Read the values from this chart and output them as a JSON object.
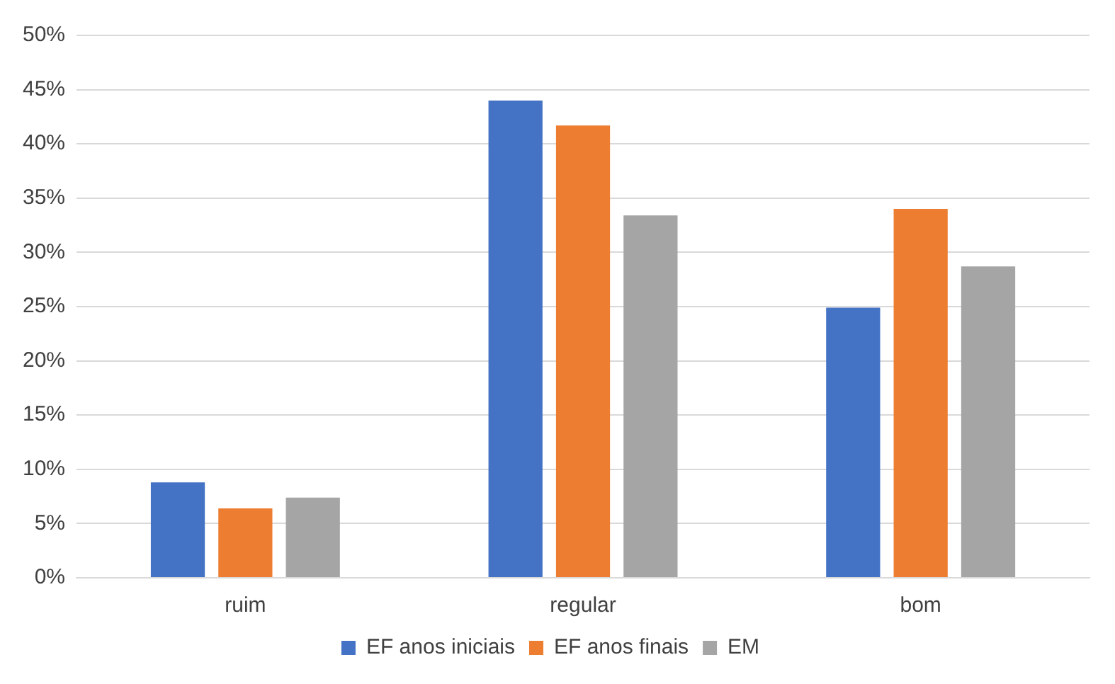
{
  "chart_data": {
    "type": "bar",
    "categories": [
      "ruim",
      "regular",
      "bom"
    ],
    "series": [
      {
        "name": "EF anos iniciais",
        "color": "#4472c4",
        "values": [
          8.8,
          44.0,
          24.9
        ]
      },
      {
        "name": "EF anos finais",
        "color": "#ed7d31",
        "values": [
          6.4,
          41.7,
          34.0
        ]
      },
      {
        "name": "EM",
        "color": "#a5a5a5",
        "values": [
          7.4,
          33.4,
          28.7
        ]
      }
    ],
    "ylim": [
      0,
      50
    ],
    "yticks": [
      {
        "value": 0,
        "label": "0%"
      },
      {
        "value": 5,
        "label": "5%"
      },
      {
        "value": 10,
        "label": "10%"
      },
      {
        "value": 15,
        "label": "15%"
      },
      {
        "value": 20,
        "label": "20%"
      },
      {
        "value": 25,
        "label": "25%"
      },
      {
        "value": 30,
        "label": "30%"
      },
      {
        "value": 35,
        "label": "35%"
      },
      {
        "value": 40,
        "label": "40%"
      },
      {
        "value": 45,
        "label": "45%"
      },
      {
        "value": 50,
        "label": "50%"
      }
    ],
    "grid": "y",
    "legend": "bottom"
  }
}
